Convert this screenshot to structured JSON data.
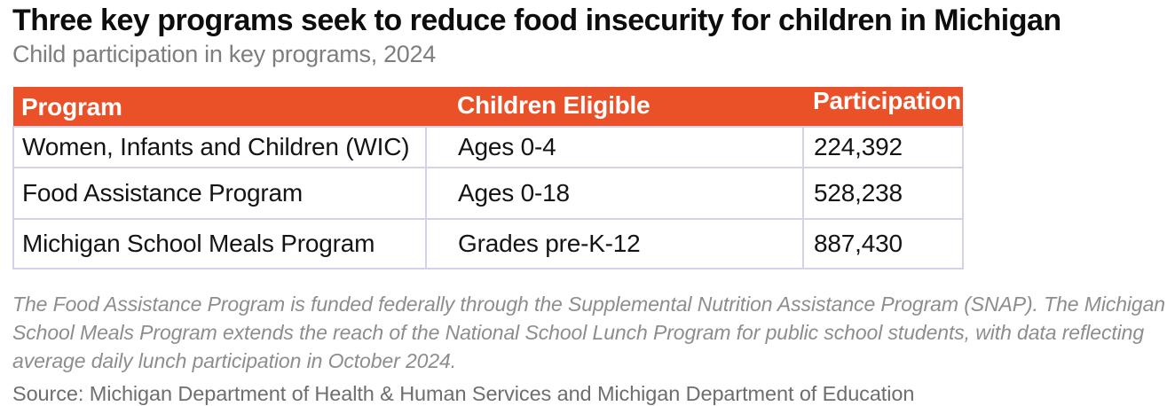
{
  "header": {
    "title": "Three key programs seek to reduce food insecurity for children in Michigan",
    "subtitle": "Child participation in key programs, 2024"
  },
  "table": {
    "columns": [
      "Program",
      "Children Eligible",
      "Participation"
    ],
    "rows": [
      {
        "program": "Women, Infants and Children (WIC)",
        "eligible": "Ages 0-4",
        "participation": "224,392"
      },
      {
        "program": "Food Assistance Program",
        "eligible": "Ages 0-18",
        "participation": "528,238"
      },
      {
        "program": "Michigan School Meals Program",
        "eligible": "Grades pre-K-12",
        "participation": "887,430"
      }
    ]
  },
  "chart_data": {
    "type": "table",
    "title": "Three key programs seek to reduce food insecurity for children in Michigan",
    "subtitle": "Child participation in key programs, 2024",
    "columns": [
      "Program",
      "Children Eligible",
      "Participation"
    ],
    "rows": [
      [
        "Women, Infants and Children (WIC)",
        "Ages 0-4",
        "224,392"
      ],
      [
        "Food Assistance Program",
        "Ages 0-18",
        "528,238"
      ],
      [
        "Michigan School Meals Program",
        "Grades pre-K-12",
        "887,430"
      ]
    ],
    "participation_values": [
      224392,
      528238,
      887430
    ]
  },
  "notes": {
    "lines": [
      "The Food Assistance Program is funded federally through the Supplemental Nutrition Assistance Program (SNAP). The Michigan",
      "School Meals Program extends the reach of the National School Lunch Program for public school students, with data reflecting",
      "average daily lunch participation in October 2024."
    ],
    "source": "Source: Michigan Department of Health & Human Services and Michigan Department of Education"
  },
  "colors": {
    "header_bg": "#EA5128",
    "grid": "#D5D1E9"
  }
}
